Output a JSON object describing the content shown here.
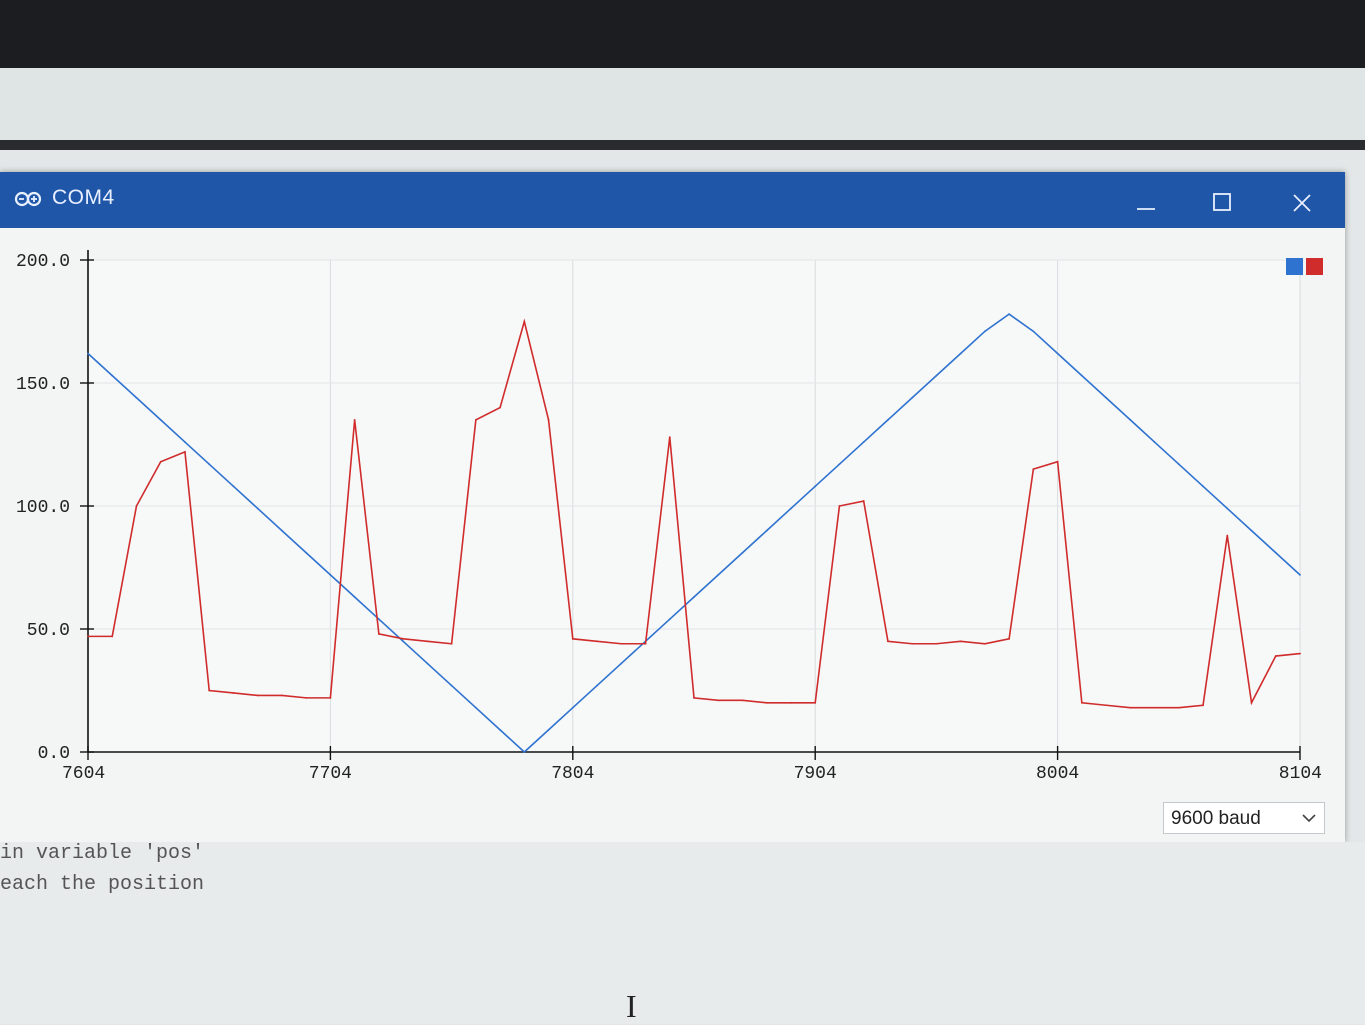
{
  "window": {
    "title": "COM4"
  },
  "colors": {
    "series1": "#2f73d0",
    "series2": "#d02c2c",
    "titlebar": "#1f56a8"
  },
  "chart_data": {
    "type": "line",
    "x": [
      7604,
      7614,
      7624,
      7634,
      7644,
      7654,
      7664,
      7674,
      7684,
      7694,
      7704,
      7714,
      7724,
      7734,
      7744,
      7754,
      7764,
      7774,
      7784,
      7794,
      7804,
      7814,
      7824,
      7834,
      7844,
      7854,
      7864,
      7874,
      7884,
      7894,
      7904,
      7914,
      7924,
      7934,
      7944,
      7954,
      7964,
      7974,
      7984,
      7994,
      8004,
      8014,
      8024,
      8034,
      8044,
      8054,
      8064,
      8074,
      8084,
      8094,
      8104
    ],
    "series": [
      {
        "values": [
          162,
          153,
          144,
          135,
          126,
          117,
          108,
          99,
          90,
          81,
          72,
          63,
          54,
          45,
          36,
          27,
          18,
          9,
          0,
          9,
          18,
          27,
          36,
          45,
          54,
          63,
          72,
          81,
          90,
          99,
          108,
          117,
          126,
          135,
          144,
          153,
          162,
          171,
          178,
          171,
          162,
          153,
          144,
          135,
          126,
          117,
          108,
          99,
          90,
          81,
          72
        ]
      },
      {
        "values": [
          47,
          47,
          100,
          118,
          122,
          25,
          24,
          23,
          23,
          22,
          22,
          135,
          48,
          46,
          45,
          44,
          135,
          140,
          175,
          135,
          46,
          45,
          44,
          44,
          128,
          22,
          21,
          21,
          20,
          20,
          20,
          100,
          102,
          45,
          44,
          44,
          45,
          44,
          46,
          115,
          118,
          20,
          19,
          18,
          18,
          18,
          19,
          88,
          20,
          39,
          40
        ]
      }
    ],
    "xlim": [
      7604,
      8104
    ],
    "ylim": [
      0,
      200
    ],
    "xticks": [
      "7604",
      "7704",
      "7804",
      "7904",
      "8004",
      "8104"
    ],
    "yticks": [
      "0.0",
      "50.0",
      "100.0",
      "150.0",
      "200.0"
    ],
    "grid": true,
    "legend": "top-right"
  },
  "serial": {
    "baud": "9600 baud"
  },
  "console": {
    "line1": "in variable 'pos'",
    "line2": "each the position"
  },
  "cursor_glyph": "I"
}
